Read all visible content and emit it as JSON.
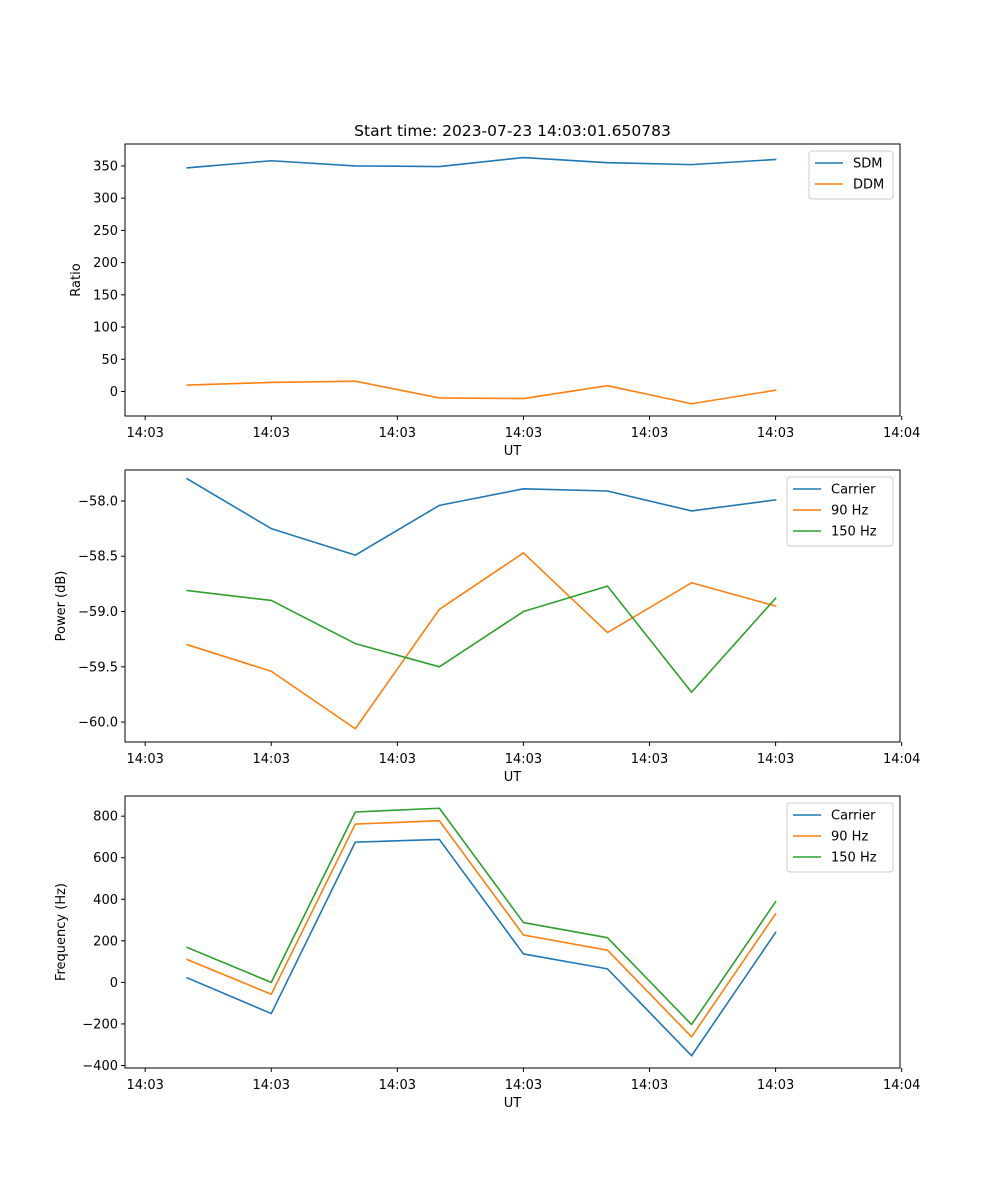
{
  "figure": {
    "title": "Start time: 2023-07-23 14:03:01.650783"
  },
  "colors": {
    "blue": "#1f77b4",
    "orange": "#ff7f0e",
    "green": "#2ca02c"
  },
  "chart_data": [
    {
      "type": "line",
      "xlabel": "UT",
      "ylabel": "Ratio",
      "xlim": [
        -0.74,
        8.48
      ],
      "ylim": [
        -38,
        384
      ],
      "x": [
        0,
        1,
        2,
        3,
        4,
        5,
        6,
        7
      ],
      "x_ticks": [
        -0.5,
        1,
        2.5,
        4,
        5.5,
        7,
        8.5
      ],
      "x_tick_labels": [
        "14:03",
        "14:03",
        "14:03",
        "14:03",
        "14:03",
        "14:03",
        "14:04"
      ],
      "y_ticks": [
        0,
        50,
        100,
        150,
        200,
        250,
        300,
        350
      ],
      "y_tick_labels": [
        "0",
        "50",
        "100",
        "150",
        "200",
        "250",
        "300",
        "350"
      ],
      "legend_position": "top-right",
      "series": [
        {
          "name": "SDM",
          "color": "#1f77b4",
          "values": [
            347,
            358,
            350,
            349,
            363,
            355,
            352,
            360
          ]
        },
        {
          "name": "DDM",
          "color": "#ff7f0e",
          "values": [
            10,
            14,
            16,
            -10,
            -11,
            9,
            -19,
            2
          ]
        }
      ]
    },
    {
      "type": "line",
      "xlabel": "UT",
      "ylabel": "Power (dB)",
      "xlim": [
        -0.74,
        8.48
      ],
      "ylim": [
        -60.18,
        -57.72
      ],
      "x": [
        0,
        1,
        2,
        3,
        4,
        5,
        6,
        7
      ],
      "x_ticks": [
        -0.5,
        1,
        2.5,
        4,
        5.5,
        7,
        8.5
      ],
      "x_tick_labels": [
        "14:03",
        "14:03",
        "14:03",
        "14:03",
        "14:03",
        "14:03",
        "14:04"
      ],
      "y_ticks": [
        -60.0,
        -59.5,
        -59.0,
        -58.5,
        -58.0
      ],
      "y_tick_labels": [
        "−60.0",
        "−59.5",
        "−59.0",
        "−58.5",
        "−58.0"
      ],
      "legend_position": "top-right",
      "series": [
        {
          "name": "Carrier",
          "color": "#1f77b4",
          "values": [
            -57.8,
            -58.25,
            -58.49,
            -58.04,
            -57.89,
            -57.91,
            -58.09,
            -57.99
          ]
        },
        {
          "name": "90 Hz",
          "color": "#ff7f0e",
          "values": [
            -59.3,
            -59.54,
            -60.06,
            -58.98,
            -58.47,
            -59.19,
            -58.74,
            -58.95
          ]
        },
        {
          "name": "150 Hz",
          "color": "#2ca02c",
          "values": [
            -58.81,
            -58.9,
            -59.29,
            -59.5,
            -59.0,
            -58.77,
            -59.73,
            -58.88
          ]
        }
      ]
    },
    {
      "type": "line",
      "xlabel": "UT",
      "ylabel": "Frequency (Hz)",
      "xlim": [
        -0.74,
        8.48
      ],
      "ylim": [
        -412,
        897
      ],
      "x": [
        0,
        1,
        2,
        3,
        4,
        5,
        6,
        7
      ],
      "x_ticks": [
        -0.5,
        1,
        2.5,
        4,
        5.5,
        7,
        8.5
      ],
      "x_tick_labels": [
        "14:03",
        "14:03",
        "14:03",
        "14:03",
        "14:03",
        "14:03",
        "14:04"
      ],
      "y_ticks": [
        -400,
        -200,
        0,
        200,
        400,
        600,
        800
      ],
      "y_tick_labels": [
        "−400",
        "−200",
        "0",
        "200",
        "400",
        "600",
        "800"
      ],
      "legend_position": "top-right",
      "series": [
        {
          "name": "Carrier",
          "color": "#1f77b4",
          "values": [
            22,
            -150,
            675,
            688,
            137,
            65,
            -353,
            240
          ]
        },
        {
          "name": "90 Hz",
          "color": "#ff7f0e",
          "values": [
            110,
            -57,
            762,
            778,
            228,
            155,
            -262,
            330
          ]
        },
        {
          "name": "150 Hz",
          "color": "#2ca02c",
          "values": [
            168,
            0,
            820,
            838,
            288,
            215,
            -203,
            388
          ]
        }
      ]
    }
  ]
}
